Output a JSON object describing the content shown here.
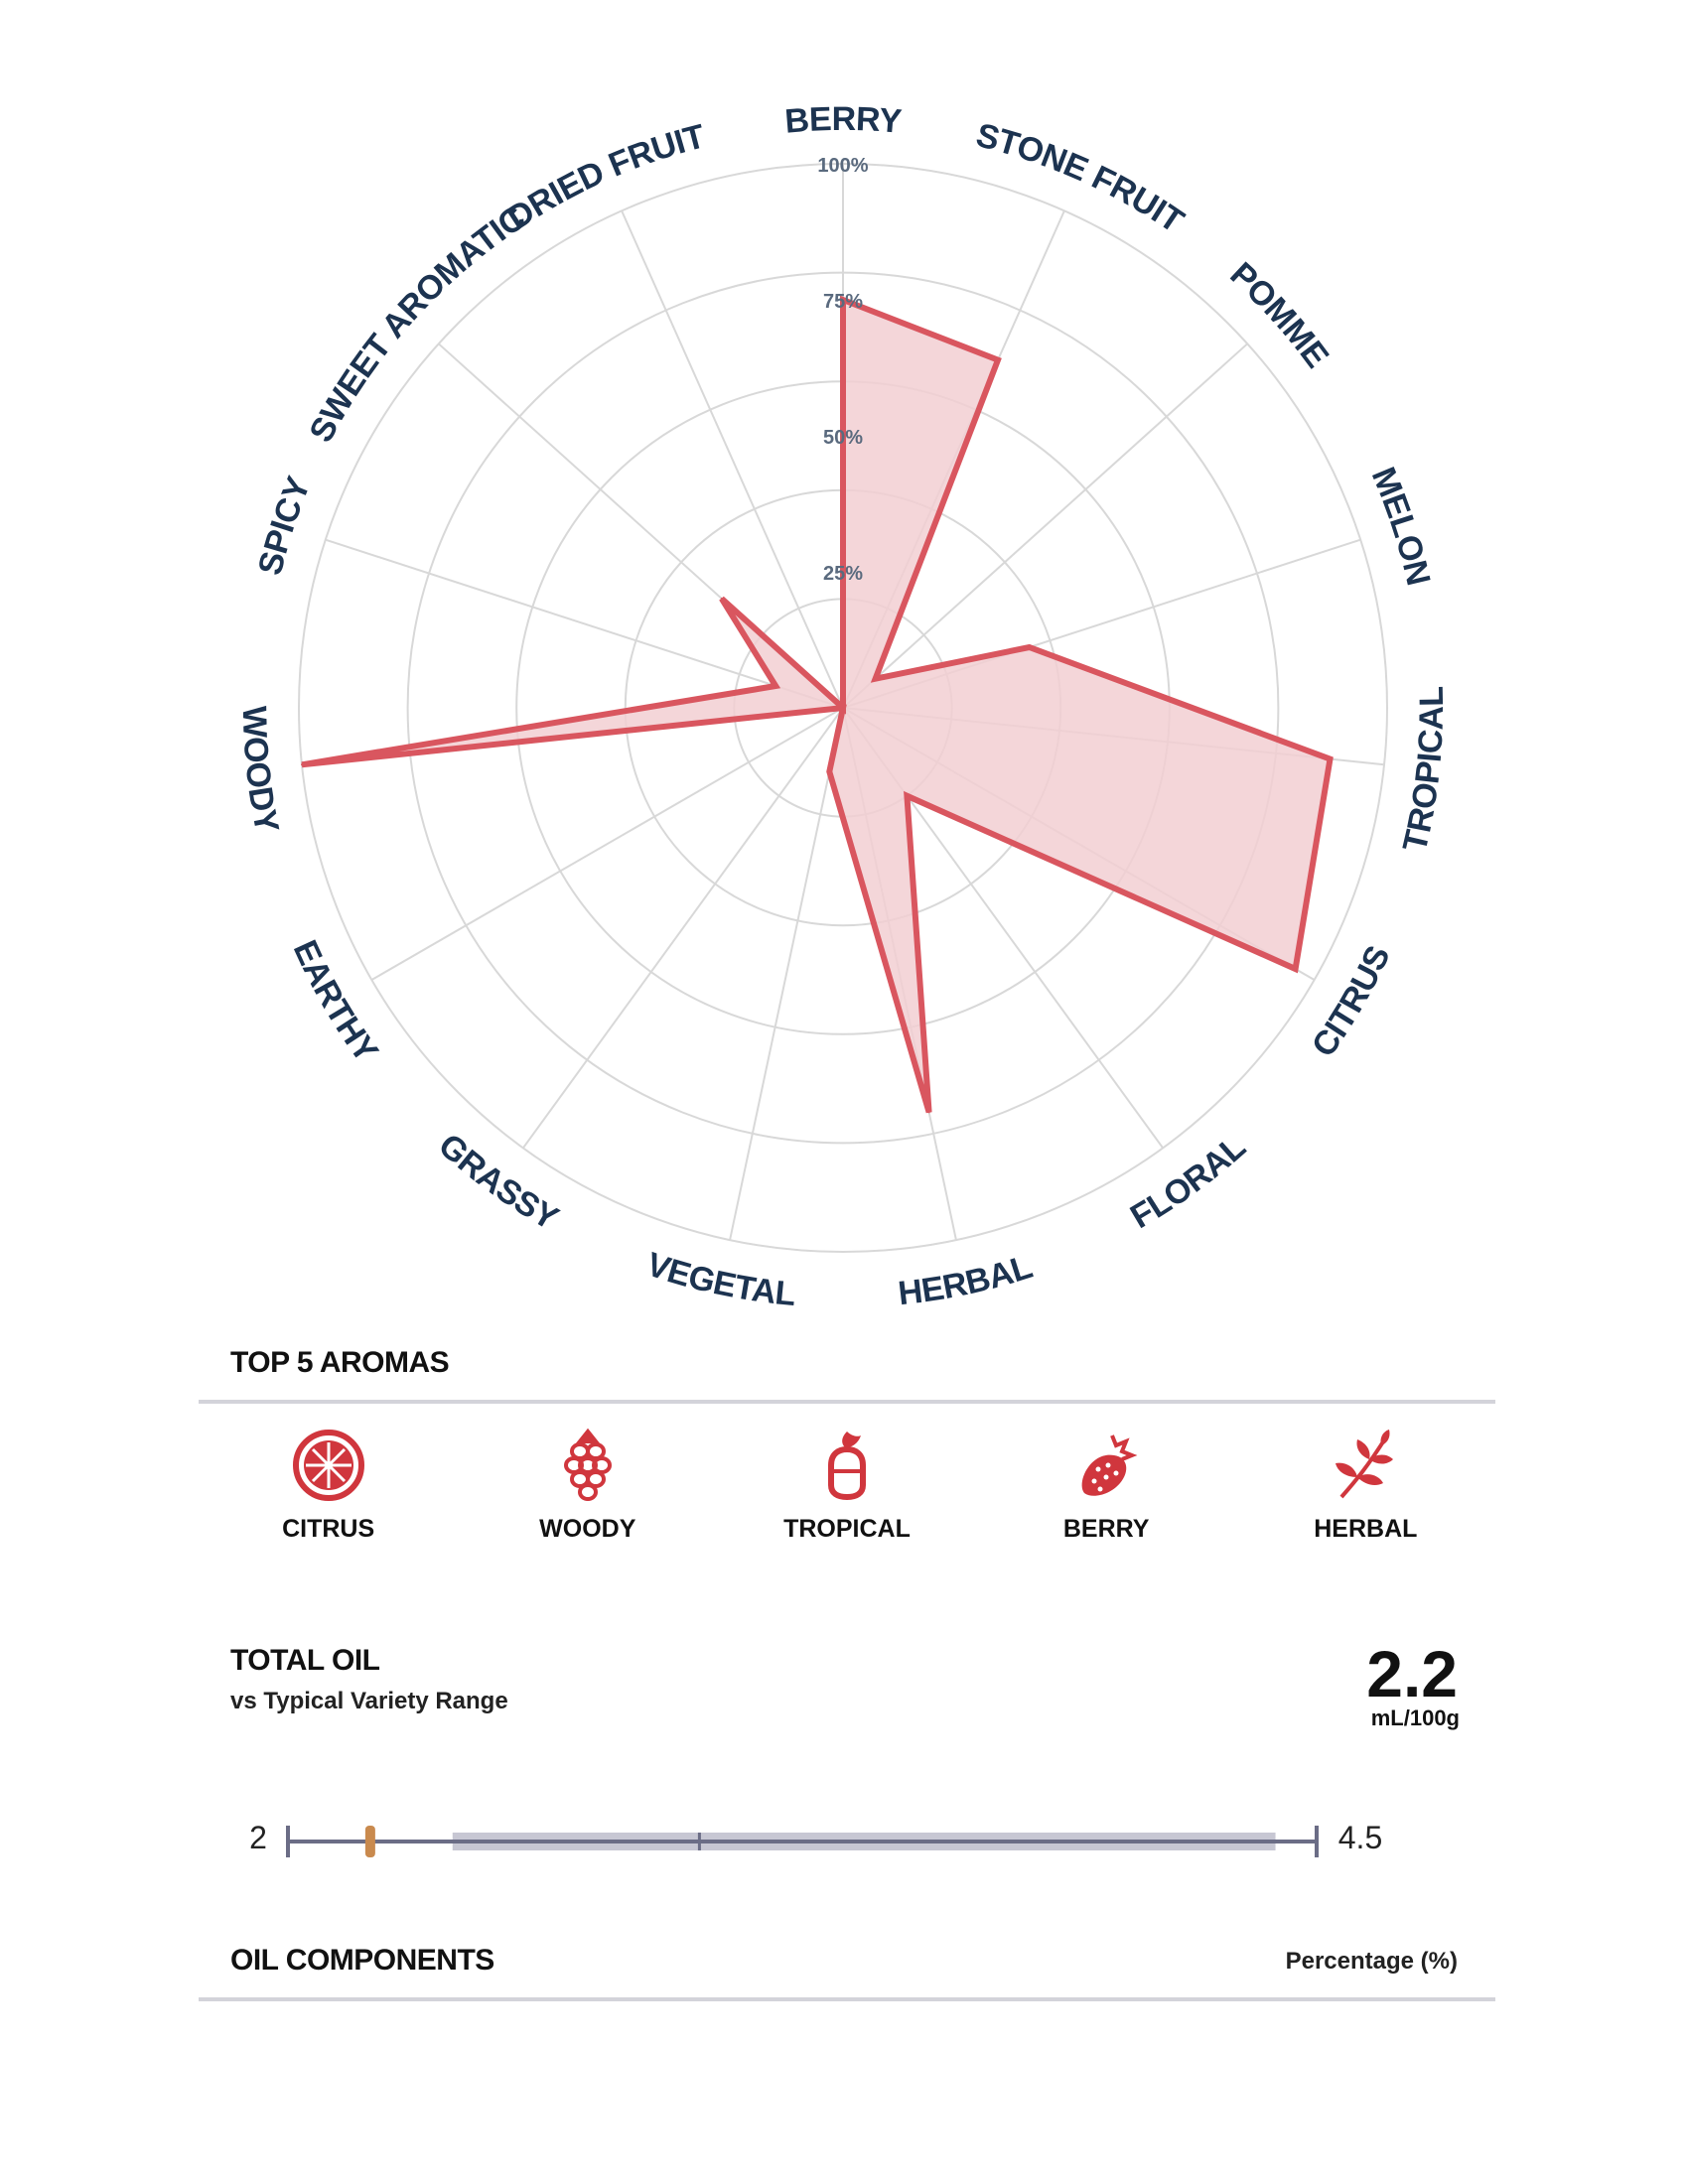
{
  "chart_data": {
    "type": "radar",
    "categories": [
      "BERRY",
      "STONE FRUIT",
      "POMME",
      "MELON",
      "TROPICAL",
      "CITRUS",
      "FLORAL",
      "HERBAL",
      "VEGETAL",
      "GRASSY",
      "EARTHY",
      "WOODY",
      "SPICY",
      "SWEET AROMATIC",
      "DRIED FRUIT"
    ],
    "values": [
      75,
      70,
      8,
      36,
      90,
      96,
      20,
      76,
      12,
      0,
      0,
      100,
      13,
      30,
      0
    ],
    "rlim": [
      0,
      100
    ],
    "ticks": [
      "25%",
      "50%",
      "75%",
      "100%"
    ],
    "grid": true,
    "colors": {
      "line": "#d9565f",
      "fill": "#f2cfd2",
      "grid": "#d8d8d8",
      "label": "#1c3350"
    }
  },
  "top_aromas": {
    "title": "TOP 5 AROMAS",
    "items": [
      {
        "label": "CITRUS",
        "icon": "citrus-icon"
      },
      {
        "label": "WOODY",
        "icon": "pinecone-icon"
      },
      {
        "label": "TROPICAL",
        "icon": "pineapple-icon"
      },
      {
        "label": "BERRY",
        "icon": "strawberry-icon"
      },
      {
        "label": "HERBAL",
        "icon": "herb-icon"
      }
    ],
    "icon_color": "#d0363d"
  },
  "total_oil": {
    "title": "TOTAL OIL",
    "subtitle": "vs Typical Variety Range",
    "value": "2.2",
    "unit": "mL/100g",
    "range_min": "2",
    "range_max": "4.5",
    "min_value": 2,
    "max_value": 4.5,
    "marker_value": 2.2,
    "typical_low": 2.4,
    "typical_high": 4.4,
    "typical_mid": 3.0,
    "colors": {
      "axis": "#6b6d86",
      "band": "#c7c7d3",
      "marker": "#c98a4e"
    }
  },
  "oil_components": {
    "title": "OIL COMPONENTS",
    "column_header": "Percentage (%)"
  }
}
